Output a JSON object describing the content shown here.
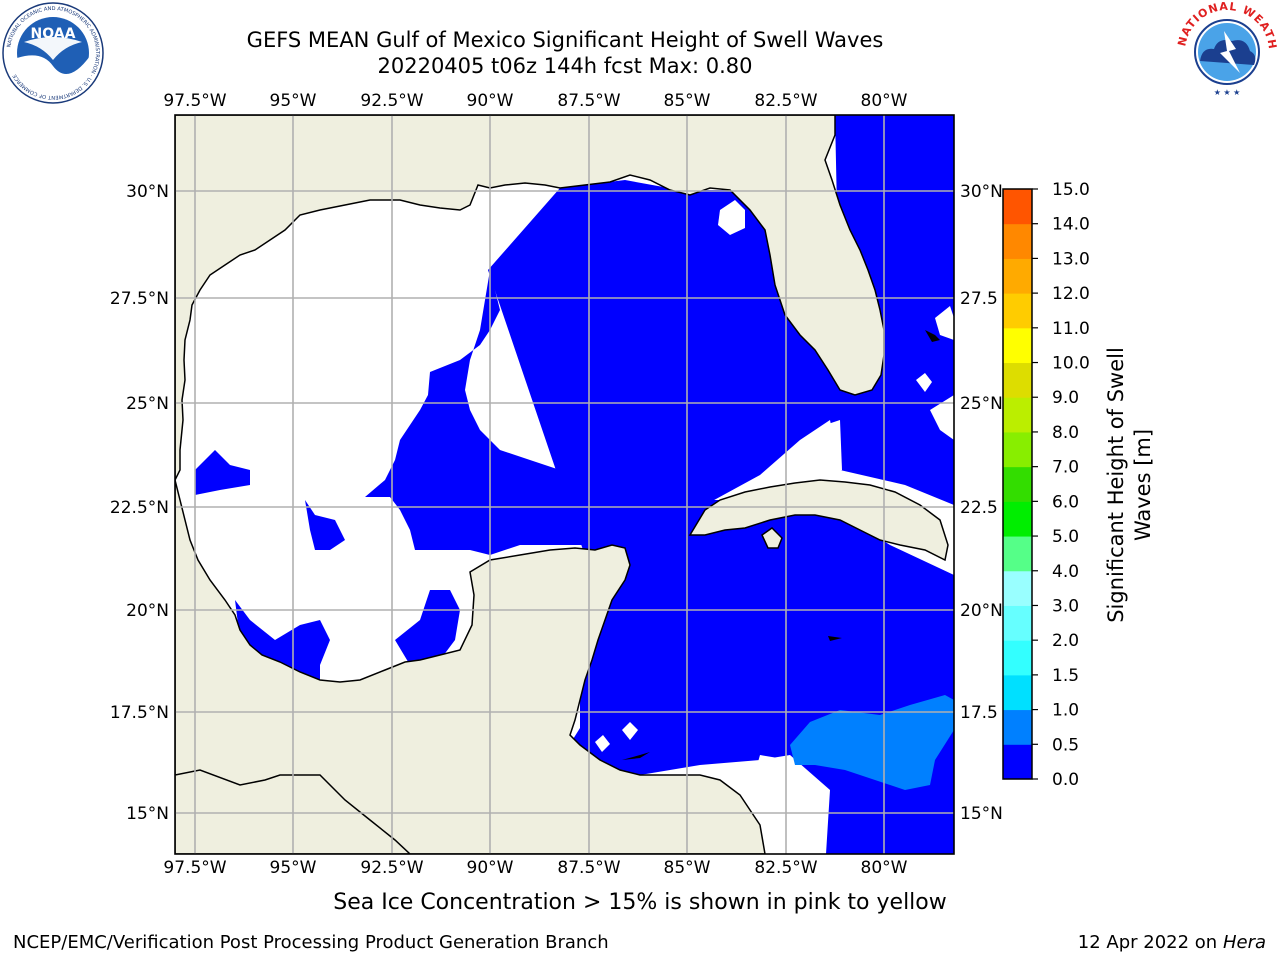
{
  "header": {
    "title_line1": "GEFS MEAN Gulf of Mexico Significant Height of Swell Waves",
    "title_line2": "20220405 t06z 144h fcst   Max: 0.80"
  },
  "logos": {
    "left": "NOAA",
    "left_ring_text": "NATIONAL OCEANIC AND ATMOSPHERIC ADMINISTRATION · U.S. DEPARTMENT OF COMMERCE",
    "right_ring_text": "NATIONAL WEATHER SERVICE"
  },
  "map": {
    "lon_labels": [
      "97.5°W",
      "95°W",
      "92.5°W",
      "90°W",
      "87.5°W",
      "85°W",
      "82.5°W",
      "80°W"
    ],
    "lat_labels_left": [
      "30°N",
      "27.5°N",
      "25°N",
      "22.5°N",
      "20°N",
      "17.5°N",
      "15°N"
    ],
    "lat_labels_right": [
      "30°N",
      "27.5",
      "25°N",
      "22.5",
      "20°N",
      "17.5",
      "15°N"
    ]
  },
  "colorbar": {
    "label_line1": "Significant Height of Swell",
    "label_line2": "Waves [m]",
    "ticks": [
      "0.0",
      "0.5",
      "1.0",
      "1.5",
      "2.0",
      "3.0",
      "4.0",
      "5.0",
      "6.0",
      "7.0",
      "8.0",
      "9.0",
      "10.0",
      "11.0",
      "12.0",
      "13.0",
      "14.0",
      "15.0"
    ],
    "colors": [
      "#0000ff",
      "#0080ff",
      "#00e0ff",
      "#33ffff",
      "#66ffff",
      "#99ffff",
      "#55ff88",
      "#00ee00",
      "#33dd00",
      "#88ee00",
      "#bbee00",
      "#dddd00",
      "#ffff00",
      "#ffcc00",
      "#ffaa00",
      "#ff8800",
      "#ff5500",
      "#ff2200",
      "#ff0000"
    ]
  },
  "subtitle": "Sea Ice Concentration > 15% is shown in pink to yellow",
  "footer": {
    "left": "NCEP/EMC/Verification Post Processing Product Generation Branch",
    "right_prefix": "12 Apr 2022 on ",
    "right_host": "Hera"
  }
}
